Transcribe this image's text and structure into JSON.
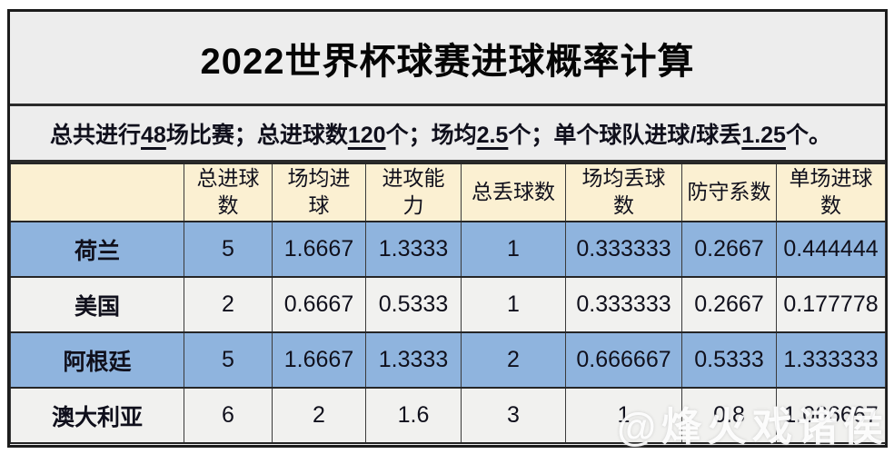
{
  "title": "2022世界杯球赛进球概率计算",
  "subtitle_segments": [
    {
      "text": "总共进行",
      "underline": false
    },
    {
      "text": "48",
      "underline": true
    },
    {
      "text": "场比赛；总进球数",
      "underline": false
    },
    {
      "text": "120",
      "underline": true
    },
    {
      "text": "个；场均",
      "underline": false
    },
    {
      "text": "2.5",
      "underline": true
    },
    {
      "text": "个；单个球队进球/球丢",
      "underline": false
    },
    {
      "text": "1.25",
      "underline": true
    },
    {
      "text": "个。",
      "underline": false
    }
  ],
  "table": {
    "headers": [
      "",
      "总进球\n数",
      "场均进\n球",
      "进攻能\n力",
      "总丢球数",
      "场均丢球\n数",
      "防守系数",
      "单场进球\n数"
    ],
    "rows": [
      {
        "team": "荷兰",
        "values": [
          "5",
          "1.6667",
          "1.3333",
          "1",
          "0.333333",
          "0.2667",
          "0.444444"
        ],
        "highlight": true
      },
      {
        "team": "美国",
        "values": [
          "2",
          "0.6667",
          "0.5333",
          "1",
          "0.333333",
          "0.2667",
          "0.177778"
        ],
        "highlight": false
      },
      {
        "team": "阿根廷",
        "values": [
          "5",
          "1.6667",
          "1.3333",
          "2",
          "0.666667",
          "0.5333",
          "1.333333"
        ],
        "highlight": true
      },
      {
        "team": "澳大利亚",
        "values": [
          "6",
          "2",
          "1.6",
          "3",
          "1",
          "0.8",
          "1.066667"
        ],
        "highlight": false
      }
    ]
  },
  "watermark": "@烽火戏诸侯",
  "colors": {
    "panel_bg": "#ededed",
    "header_bg": "#fbf0d2",
    "row_blue": "#8fb4de",
    "row_light": "#f1f1ef",
    "border": "#262626"
  },
  "chart_data": {
    "type": "table",
    "title": "2022世界杯球赛进球概率计算",
    "columns": [
      "总进球数",
      "场均进球",
      "进攻能力",
      "总丢球数",
      "场均丢球数",
      "防守系数",
      "单场进球数"
    ],
    "rows": [
      {
        "team": "荷兰",
        "总进球数": 5,
        "场均进球": 1.6667,
        "进攻能力": 1.3333,
        "总丢球数": 1,
        "场均丢球数": 0.333333,
        "防守系数": 0.2667,
        "单场进球数": 0.444444
      },
      {
        "team": "美国",
        "总进球数": 2,
        "场均进球": 0.6667,
        "进攻能力": 0.5333,
        "总丢球数": 1,
        "场均丢球数": 0.333333,
        "防守系数": 0.2667,
        "单场进球数": 0.177778
      },
      {
        "team": "阿根廷",
        "总进球数": 5,
        "场均进球": 1.6667,
        "进攻能力": 1.3333,
        "总丢球数": 2,
        "场均丢球数": 0.666667,
        "防守系数": 0.5333,
        "单场进球数": 1.333333
      },
      {
        "team": "澳大利亚",
        "总进球数": 6,
        "场均进球": 2,
        "进攻能力": 1.6,
        "总丢球数": 3,
        "场均丢球数": 1,
        "防守系数": 0.8,
        "单场进球数": 1.066667
      }
    ]
  }
}
